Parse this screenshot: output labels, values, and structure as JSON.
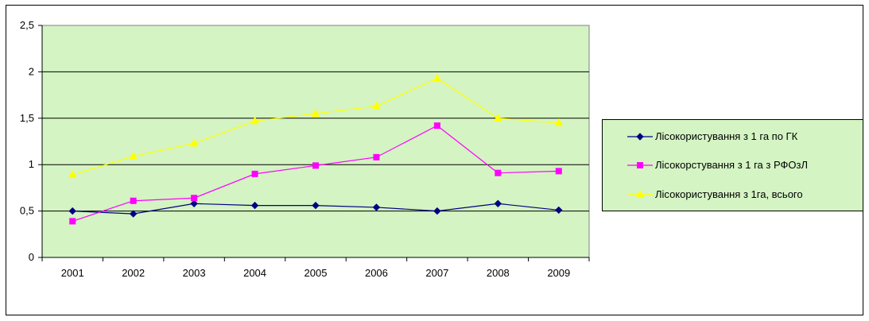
{
  "chart_data": {
    "type": "line",
    "x": [
      "2001",
      "2002",
      "2003",
      "2004",
      "2005",
      "2006",
      "2007",
      "2008",
      "2009"
    ],
    "series": [
      {
        "name": "Лісокористування з 1 га по ГК",
        "color": "#000080",
        "marker": "diamond",
        "values": [
          0.5,
          0.47,
          0.58,
          0.56,
          0.56,
          0.54,
          0.5,
          0.58,
          0.51
        ]
      },
      {
        "name": "Лісокорстування з 1 га з  РФОзЛ",
        "color": "#ff00ff",
        "marker": "square",
        "values": [
          0.39,
          0.61,
          0.64,
          0.9,
          0.99,
          1.08,
          1.42,
          0.91,
          0.93
        ]
      },
      {
        "name": "Лісокористування з 1га, всього",
        "color": "#ffff00",
        "marker": "triangle",
        "values": [
          0.89,
          1.09,
          1.23,
          1.47,
          1.55,
          1.63,
          1.93,
          1.5,
          1.45
        ]
      }
    ],
    "y_ticks": [
      "0",
      "0,5",
      "1",
      "1,5",
      "2",
      "2,5"
    ],
    "ylim": [
      0,
      2.5
    ],
    "grid": true,
    "plot_background": "#d4f4c3",
    "legend_position": "right"
  }
}
